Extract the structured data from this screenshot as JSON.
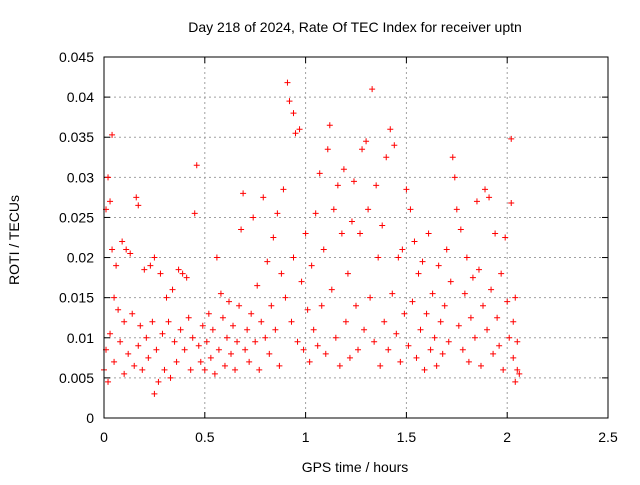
{
  "chart_data": {
    "type": "scatter",
    "title": "Day 218 of 2024, Rate Of TEC Index for receiver uptn",
    "xlabel": "GPS time / hours",
    "ylabel": "ROTI / TECUs",
    "xlim": [
      0,
      2.5
    ],
    "ylim": [
      0,
      0.045
    ],
    "xticks": [
      0,
      0.5,
      1,
      1.5,
      2,
      2.5
    ],
    "xtick_labels": [
      "0",
      "0.5",
      "1",
      "1.5",
      "2",
      "2.5"
    ],
    "yticks": [
      0,
      0.005,
      0.01,
      0.015,
      0.02,
      0.025,
      0.03,
      0.035,
      0.04,
      0.045
    ],
    "ytick_labels": [
      "0",
      "0.005",
      "0.01",
      "0.015",
      "0.02",
      "0.025",
      "0.03",
      "0.035",
      "0.04",
      "0.045"
    ],
    "grid": true,
    "marker": "+",
    "color": "#ff0000",
    "series": [
      {
        "name": "ROTI",
        "points": [
          [
            0.0,
            0.006
          ],
          [
            0.01,
            0.0085
          ],
          [
            0.01,
            0.026
          ],
          [
            0.02,
            0.03
          ],
          [
            0.02,
            0.0045
          ],
          [
            0.03,
            0.0105
          ],
          [
            0.03,
            0.027
          ],
          [
            0.04,
            0.021
          ],
          [
            0.04,
            0.0353
          ],
          [
            0.05,
            0.007
          ],
          [
            0.05,
            0.015
          ],
          [
            0.06,
            0.019
          ],
          [
            0.07,
            0.0135
          ],
          [
            0.08,
            0.0095
          ],
          [
            0.09,
            0.022
          ],
          [
            0.1,
            0.0055
          ],
          [
            0.1,
            0.012
          ],
          [
            0.11,
            0.021
          ],
          [
            0.12,
            0.008
          ],
          [
            0.13,
            0.0205
          ],
          [
            0.14,
            0.013
          ],
          [
            0.15,
            0.0065
          ],
          [
            0.16,
            0.0275
          ],
          [
            0.17,
            0.009
          ],
          [
            0.17,
            0.0265
          ],
          [
            0.18,
            0.0115
          ],
          [
            0.19,
            0.006
          ],
          [
            0.2,
            0.0185
          ],
          [
            0.21,
            0.01
          ],
          [
            0.22,
            0.0075
          ],
          [
            0.23,
            0.019
          ],
          [
            0.24,
            0.012
          ],
          [
            0.25,
            0.003
          ],
          [
            0.25,
            0.02
          ],
          [
            0.26,
            0.0085
          ],
          [
            0.27,
            0.0045
          ],
          [
            0.28,
            0.018
          ],
          [
            0.29,
            0.0105
          ],
          [
            0.3,
            0.006
          ],
          [
            0.31,
            0.015
          ],
          [
            0.32,
            0.012
          ],
          [
            0.33,
            0.005
          ],
          [
            0.34,
            0.016
          ],
          [
            0.35,
            0.0095
          ],
          [
            0.36,
            0.007
          ],
          [
            0.37,
            0.0185
          ],
          [
            0.38,
            0.011
          ],
          [
            0.39,
            0.018
          ],
          [
            0.4,
            0.0085
          ],
          [
            0.41,
            0.0175
          ],
          [
            0.42,
            0.0125
          ],
          [
            0.43,
            0.006
          ],
          [
            0.44,
            0.01
          ],
          [
            0.45,
            0.0255
          ],
          [
            0.46,
            0.0315
          ],
          [
            0.47,
            0.009
          ],
          [
            0.48,
            0.007
          ],
          [
            0.49,
            0.0115
          ],
          [
            0.5,
            0.006
          ],
          [
            0.51,
            0.0095
          ],
          [
            0.52,
            0.013
          ],
          [
            0.53,
            0.0075
          ],
          [
            0.54,
            0.011
          ],
          [
            0.55,
            0.0055
          ],
          [
            0.56,
            0.02
          ],
          [
            0.57,
            0.0085
          ],
          [
            0.58,
            0.0155
          ],
          [
            0.59,
            0.0125
          ],
          [
            0.6,
            0.0065
          ],
          [
            0.61,
            0.01
          ],
          [
            0.62,
            0.0145
          ],
          [
            0.63,
            0.008
          ],
          [
            0.64,
            0.0115
          ],
          [
            0.65,
            0.006
          ],
          [
            0.66,
            0.0095
          ],
          [
            0.67,
            0.014
          ],
          [
            0.68,
            0.0235
          ],
          [
            0.69,
            0.028
          ],
          [
            0.7,
            0.0085
          ],
          [
            0.71,
            0.011
          ],
          [
            0.72,
            0.007
          ],
          [
            0.73,
            0.013
          ],
          [
            0.74,
            0.025
          ],
          [
            0.75,
            0.0095
          ],
          [
            0.76,
            0.0165
          ],
          [
            0.77,
            0.006
          ],
          [
            0.78,
            0.012
          ],
          [
            0.79,
            0.0275
          ],
          [
            0.8,
            0.01
          ],
          [
            0.81,
            0.0195
          ],
          [
            0.82,
            0.008
          ],
          [
            0.83,
            0.014
          ],
          [
            0.84,
            0.0225
          ],
          [
            0.85,
            0.011
          ],
          [
            0.86,
            0.0255
          ],
          [
            0.87,
            0.0065
          ],
          [
            0.88,
            0.018
          ],
          [
            0.89,
            0.0285
          ],
          [
            0.9,
            0.015
          ],
          [
            0.91,
            0.0418
          ],
          [
            0.92,
            0.0395
          ],
          [
            0.93,
            0.012
          ],
          [
            0.94,
            0.038
          ],
          [
            0.94,
            0.02
          ],
          [
            0.95,
            0.0355
          ],
          [
            0.96,
            0.0095
          ],
          [
            0.97,
            0.036
          ],
          [
            0.98,
            0.017
          ],
          [
            0.99,
            0.0085
          ],
          [
            1.0,
            0.023
          ],
          [
            1.01,
            0.0135
          ],
          [
            1.02,
            0.007
          ],
          [
            1.03,
            0.019
          ],
          [
            1.04,
            0.011
          ],
          [
            1.05,
            0.0255
          ],
          [
            1.06,
            0.009
          ],
          [
            1.07,
            0.0305
          ],
          [
            1.08,
            0.014
          ],
          [
            1.09,
            0.021
          ],
          [
            1.1,
            0.008
          ],
          [
            1.11,
            0.0335
          ],
          [
            1.12,
            0.0365
          ],
          [
            1.13,
            0.016
          ],
          [
            1.14,
            0.026
          ],
          [
            1.15,
            0.01
          ],
          [
            1.16,
            0.029
          ],
          [
            1.17,
            0.0065
          ],
          [
            1.18,
            0.023
          ],
          [
            1.19,
            0.031
          ],
          [
            1.2,
            0.012
          ],
          [
            1.21,
            0.018
          ],
          [
            1.22,
            0.0075
          ],
          [
            1.23,
            0.0245
          ],
          [
            1.24,
            0.0295
          ],
          [
            1.25,
            0.014
          ],
          [
            1.26,
            0.0085
          ],
          [
            1.27,
            0.023
          ],
          [
            1.28,
            0.0335
          ],
          [
            1.29,
            0.011
          ],
          [
            1.3,
            0.0345
          ],
          [
            1.31,
            0.026
          ],
          [
            1.32,
            0.015
          ],
          [
            1.33,
            0.041
          ],
          [
            1.34,
            0.0095
          ],
          [
            1.35,
            0.029
          ],
          [
            1.36,
            0.02
          ],
          [
            1.37,
            0.0065
          ],
          [
            1.38,
            0.024
          ],
          [
            1.39,
            0.012
          ],
          [
            1.4,
            0.0325
          ],
          [
            1.41,
            0.0085
          ],
          [
            1.42,
            0.036
          ],
          [
            1.43,
            0.0155
          ],
          [
            1.44,
            0.034
          ],
          [
            1.45,
            0.0105
          ],
          [
            1.46,
            0.02
          ],
          [
            1.47,
            0.007
          ],
          [
            1.48,
            0.021
          ],
          [
            1.49,
            0.013
          ],
          [
            1.5,
            0.0285
          ],
          [
            1.51,
            0.009
          ],
          [
            1.52,
            0.026
          ],
          [
            1.53,
            0.0145
          ],
          [
            1.54,
            0.022
          ],
          [
            1.55,
            0.0075
          ],
          [
            1.56,
            0.018
          ],
          [
            1.57,
            0.011
          ],
          [
            1.58,
            0.0195
          ],
          [
            1.59,
            0.006
          ],
          [
            1.6,
            0.013
          ],
          [
            1.61,
            0.023
          ],
          [
            1.62,
            0.0085
          ],
          [
            1.63,
            0.0155
          ],
          [
            1.64,
            0.01
          ],
          [
            1.65,
            0.0065
          ],
          [
            1.66,
            0.019
          ],
          [
            1.67,
            0.012
          ],
          [
            1.68,
            0.008
          ],
          [
            1.69,
            0.014
          ],
          [
            1.7,
            0.021
          ],
          [
            1.71,
            0.0095
          ],
          [
            1.72,
            0.017
          ],
          [
            1.73,
            0.0325
          ],
          [
            1.74,
            0.03
          ],
          [
            1.75,
            0.026
          ],
          [
            1.76,
            0.0115
          ],
          [
            1.77,
            0.0235
          ],
          [
            1.78,
            0.0085
          ],
          [
            1.79,
            0.0155
          ],
          [
            1.8,
            0.02
          ],
          [
            1.81,
            0.007
          ],
          [
            1.82,
            0.0125
          ],
          [
            1.83,
            0.0175
          ],
          [
            1.84,
            0.01
          ],
          [
            1.85,
            0.027
          ],
          [
            1.86,
            0.0185
          ],
          [
            1.87,
            0.0065
          ],
          [
            1.88,
            0.014
          ],
          [
            1.89,
            0.0285
          ],
          [
            1.9,
            0.011
          ],
          [
            1.91,
            0.0275
          ],
          [
            1.92,
            0.016
          ],
          [
            1.93,
            0.008
          ],
          [
            1.94,
            0.023
          ],
          [
            1.95,
            0.0125
          ],
          [
            1.96,
            0.009
          ],
          [
            1.97,
            0.018
          ],
          [
            1.98,
            0.006
          ],
          [
            1.99,
            0.0225
          ],
          [
            2.0,
            0.0145
          ],
          [
            2.01,
            0.01
          ],
          [
            2.02,
            0.0268
          ],
          [
            2.02,
            0.0348
          ],
          [
            2.03,
            0.0075
          ],
          [
            2.03,
            0.012
          ],
          [
            2.04,
            0.0045
          ],
          [
            2.04,
            0.015
          ],
          [
            2.05,
            0.006
          ],
          [
            2.05,
            0.0095
          ],
          [
            2.06,
            0.0055
          ]
        ]
      }
    ]
  }
}
